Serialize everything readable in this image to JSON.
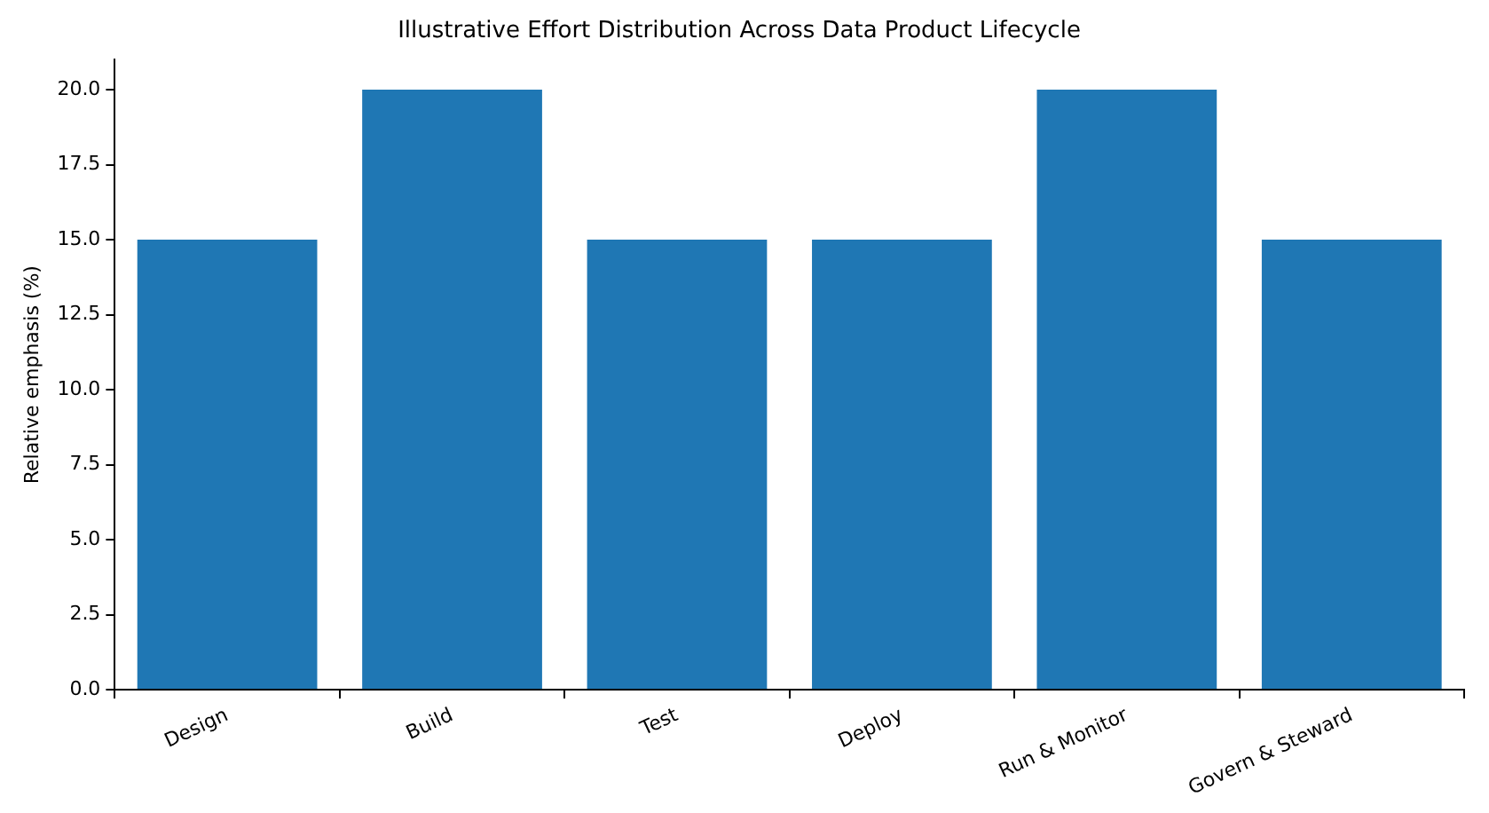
{
  "chart_data": {
    "type": "bar",
    "title": "Illustrative Effort Distribution Across Data Product Lifecycle",
    "ylabel": "Relative emphasis (%)",
    "categories": [
      "Design",
      "Build",
      "Test",
      "Deploy",
      "Run & Monitor",
      "Govern & Steward"
    ],
    "values": [
      15,
      20,
      15,
      15,
      20,
      15
    ],
    "color": "#1f77b4",
    "ylim": [
      0,
      21
    ],
    "yticks": [
      {
        "value": 0,
        "label": "0.0"
      },
      {
        "value": 2.5,
        "label": "2.5"
      },
      {
        "value": 5,
        "label": "5.0"
      },
      {
        "value": 7.5,
        "label": "7.5"
      },
      {
        "value": 10,
        "label": "10.0"
      },
      {
        "value": 12.5,
        "label": "12.5"
      },
      {
        "value": 15,
        "label": "15.0"
      },
      {
        "value": 17.5,
        "label": "17.5"
      },
      {
        "value": 20,
        "label": "20.0"
      }
    ],
    "grid": false
  }
}
